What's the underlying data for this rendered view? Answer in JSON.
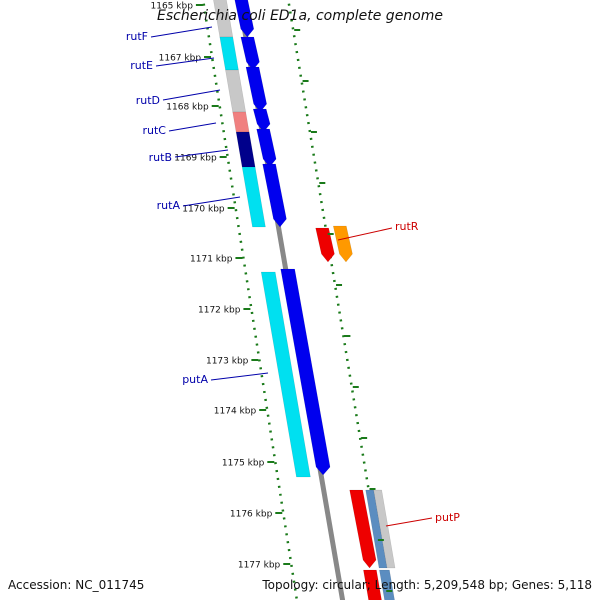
{
  "title": "Escherichia coli ED1a, complete genome",
  "accession": "Accession: NC_011745",
  "summary": "Topology: circular; Length: 5,209,548 bp; Genes: 5,118",
  "colors": {
    "backbone": "#888888",
    "tick": "#1a7a1a",
    "blue": "#0000ee",
    "cyan": "#00e0f0",
    "navy": "#00008b",
    "gray": "#c8c8c8",
    "salmon": "#f08080",
    "red": "#ee0000",
    "orange": "#ff9900",
    "steel": "#5b8dc0",
    "gene_label_blue": "#0000aa",
    "gene_label_red": "#cc0000"
  },
  "kbp_ticks": [
    "1165 kbp",
    "1167 kbp",
    "1168 kbp",
    "1169 kbp",
    "1170 kbp",
    "1171 kbp",
    "1172 kbp",
    "1173 kbp",
    "1174 kbp",
    "1175 kbp",
    "1176 kbp",
    "1177 kbp"
  ],
  "gene_labels": [
    {
      "text": "rutF",
      "color": "gene_label_blue"
    },
    {
      "text": "rutE",
      "color": "gene_label_blue"
    },
    {
      "text": "rutD",
      "color": "gene_label_blue"
    },
    {
      "text": "rutC",
      "color": "gene_label_blue"
    },
    {
      "text": "rutB",
      "color": "gene_label_blue"
    },
    {
      "text": "rutA",
      "color": "gene_label_blue"
    },
    {
      "text": "rutR",
      "color": "gene_label_red"
    },
    {
      "text": "putA",
      "color": "gene_label_blue"
    },
    {
      "text": "putP",
      "color": "gene_label_red"
    }
  ]
}
